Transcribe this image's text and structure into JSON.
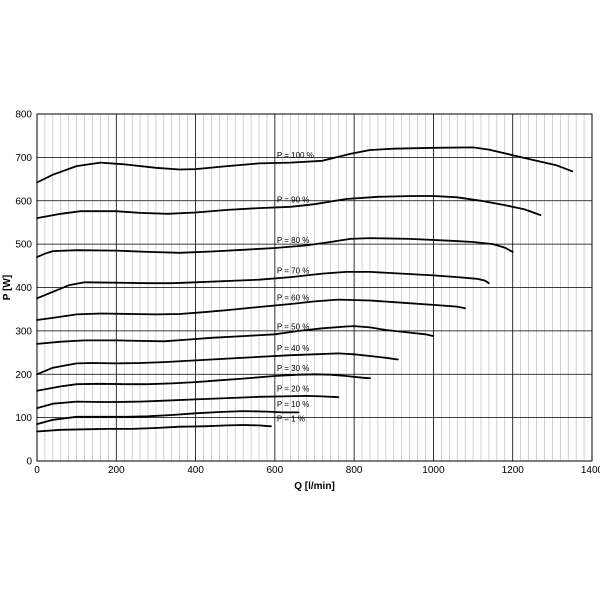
{
  "chart_data": {
    "type": "line",
    "title": "",
    "xlabel": "Q [l/min]",
    "ylabel": "P [W]",
    "xlim": [
      0,
      1400
    ],
    "ylim": [
      0,
      800
    ],
    "x_ticks": [
      0,
      200,
      400,
      600,
      800,
      1000,
      1200,
      1400
    ],
    "y_ticks": [
      0,
      100,
      200,
      300,
      400,
      500,
      600,
      700,
      800
    ],
    "x_minor_step": 20,
    "grid": true,
    "series": [
      {
        "name": "P = 100 %",
        "points": [
          [
            0,
            642
          ],
          [
            40,
            660
          ],
          [
            100,
            680
          ],
          [
            160,
            688
          ],
          [
            220,
            684
          ],
          [
            300,
            676
          ],
          [
            360,
            672
          ],
          [
            400,
            673
          ],
          [
            480,
            680
          ],
          [
            560,
            686
          ],
          [
            640,
            688
          ],
          [
            720,
            692
          ],
          [
            790,
            708
          ],
          [
            840,
            717
          ],
          [
            900,
            720
          ],
          [
            1000,
            722
          ],
          [
            1100,
            723
          ],
          [
            1140,
            718
          ],
          [
            1200,
            705
          ],
          [
            1260,
            692
          ],
          [
            1310,
            682
          ],
          [
            1350,
            668
          ]
        ]
      },
      {
        "name": "P = 90 %",
        "points": [
          [
            0,
            560
          ],
          [
            60,
            570
          ],
          [
            110,
            576
          ],
          [
            160,
            576
          ],
          [
            200,
            576
          ],
          [
            260,
            572
          ],
          [
            330,
            570
          ],
          [
            400,
            573
          ],
          [
            480,
            579
          ],
          [
            560,
            583
          ],
          [
            640,
            586
          ],
          [
            700,
            592
          ],
          [
            780,
            604
          ],
          [
            860,
            609
          ],
          [
            950,
            611
          ],
          [
            1000,
            611
          ],
          [
            1060,
            608
          ],
          [
            1120,
            600
          ],
          [
            1180,
            590
          ],
          [
            1230,
            580
          ],
          [
            1270,
            567
          ]
        ]
      },
      {
        "name": "P = 80 %",
        "points": [
          [
            0,
            470
          ],
          [
            20,
            478
          ],
          [
            40,
            484
          ],
          [
            100,
            486
          ],
          [
            200,
            485
          ],
          [
            280,
            482
          ],
          [
            360,
            480
          ],
          [
            440,
            483
          ],
          [
            520,
            487
          ],
          [
            600,
            491
          ],
          [
            680,
            497
          ],
          [
            740,
            505
          ],
          [
            790,
            512
          ],
          [
            840,
            514
          ],
          [
            940,
            512
          ],
          [
            1040,
            508
          ],
          [
            1100,
            505
          ],
          [
            1150,
            500
          ],
          [
            1180,
            492
          ],
          [
            1200,
            482
          ]
        ]
      },
      {
        "name": "P = 70 %",
        "points": [
          [
            0,
            375
          ],
          [
            40,
            390
          ],
          [
            80,
            405
          ],
          [
            120,
            412
          ],
          [
            200,
            411
          ],
          [
            280,
            410
          ],
          [
            340,
            410
          ],
          [
            400,
            412
          ],
          [
            480,
            415
          ],
          [
            560,
            418
          ],
          [
            640,
            424
          ],
          [
            720,
            432
          ],
          [
            780,
            436
          ],
          [
            840,
            436
          ],
          [
            920,
            432
          ],
          [
            1000,
            428
          ],
          [
            1060,
            424
          ],
          [
            1110,
            420
          ],
          [
            1130,
            416
          ],
          [
            1140,
            410
          ]
        ]
      },
      {
        "name": "P = 60 %",
        "points": [
          [
            0,
            325
          ],
          [
            40,
            330
          ],
          [
            100,
            338
          ],
          [
            160,
            340
          ],
          [
            240,
            339
          ],
          [
            300,
            338
          ],
          [
            360,
            339
          ],
          [
            420,
            343
          ],
          [
            480,
            348
          ],
          [
            560,
            355
          ],
          [
            640,
            362
          ],
          [
            700,
            368
          ],
          [
            760,
            372
          ],
          [
            840,
            370
          ],
          [
            920,
            365
          ],
          [
            1000,
            360
          ],
          [
            1060,
            356
          ],
          [
            1080,
            352
          ]
        ]
      },
      {
        "name": "P = 50 %",
        "points": [
          [
            0,
            270
          ],
          [
            60,
            275
          ],
          [
            120,
            278
          ],
          [
            200,
            278
          ],
          [
            260,
            277
          ],
          [
            320,
            276
          ],
          [
            380,
            280
          ],
          [
            440,
            284
          ],
          [
            520,
            288
          ],
          [
            600,
            292
          ],
          [
            660,
            300
          ],
          [
            720,
            306
          ],
          [
            780,
            310
          ],
          [
            800,
            311
          ],
          [
            840,
            308
          ],
          [
            880,
            302
          ],
          [
            940,
            296
          ],
          [
            980,
            292
          ],
          [
            1000,
            288
          ]
        ]
      },
      {
        "name": "P = 40 %",
        "points": [
          [
            0,
            200
          ],
          [
            40,
            215
          ],
          [
            100,
            225
          ],
          [
            140,
            226
          ],
          [
            200,
            225
          ],
          [
            260,
            226
          ],
          [
            320,
            228
          ],
          [
            400,
            232
          ],
          [
            480,
            236
          ],
          [
            560,
            240
          ],
          [
            640,
            244
          ],
          [
            700,
            246
          ],
          [
            760,
            248
          ],
          [
            800,
            246
          ],
          [
            840,
            242
          ],
          [
            880,
            238
          ],
          [
            910,
            234
          ]
        ]
      },
      {
        "name": "P = 30 %",
        "points": [
          [
            0,
            162
          ],
          [
            60,
            172
          ],
          [
            100,
            177
          ],
          [
            160,
            178
          ],
          [
            220,
            177
          ],
          [
            280,
            177
          ],
          [
            340,
            179
          ],
          [
            400,
            182
          ],
          [
            460,
            186
          ],
          [
            520,
            190
          ],
          [
            600,
            196
          ],
          [
            660,
            199
          ],
          [
            700,
            200
          ],
          [
            740,
            199
          ],
          [
            780,
            196
          ],
          [
            820,
            192
          ],
          [
            840,
            191
          ]
        ]
      },
      {
        "name": "P = 20 %",
        "points": [
          [
            0,
            122
          ],
          [
            40,
            132
          ],
          [
            100,
            137
          ],
          [
            160,
            136
          ],
          [
            200,
            136
          ],
          [
            260,
            137
          ],
          [
            320,
            139
          ],
          [
            400,
            142
          ],
          [
            480,
            145
          ],
          [
            560,
            148
          ],
          [
            620,
            149
          ],
          [
            680,
            150
          ],
          [
            720,
            149
          ],
          [
            760,
            147
          ]
        ]
      },
      {
        "name": "P = 10 %",
        "points": [
          [
            0,
            85
          ],
          [
            40,
            95
          ],
          [
            100,
            102
          ],
          [
            160,
            102
          ],
          [
            220,
            102
          ],
          [
            280,
            103
          ],
          [
            340,
            106
          ],
          [
            400,
            110
          ],
          [
            460,
            113
          ],
          [
            520,
            115
          ],
          [
            580,
            114
          ],
          [
            620,
            112
          ],
          [
            660,
            112
          ]
        ]
      },
      {
        "name": "P = 1 %",
        "points": [
          [
            0,
            68
          ],
          [
            60,
            72
          ],
          [
            120,
            73
          ],
          [
            180,
            74
          ],
          [
            240,
            74
          ],
          [
            300,
            76
          ],
          [
            360,
            79
          ],
          [
            420,
            80
          ],
          [
            480,
            82
          ],
          [
            520,
            83
          ],
          [
            560,
            82
          ],
          [
            590,
            80
          ]
        ]
      }
    ]
  }
}
